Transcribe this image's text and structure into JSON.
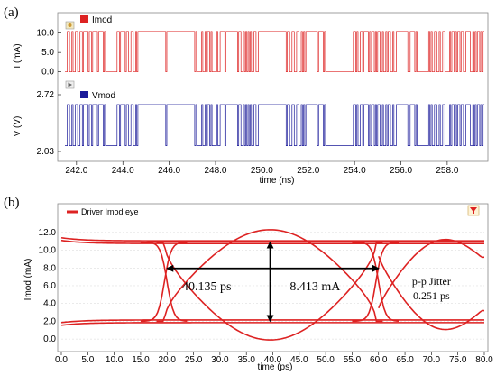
{
  "panels": {
    "a_label": "(a)",
    "b_label": "(b)"
  },
  "chart_data": [
    {
      "type": "line",
      "panel": "(a)",
      "xlabel": "time (ns)",
      "xlim": [
        241.5,
        259.6
      ],
      "x_ticks": [
        "242.0",
        "244.0",
        "246.0",
        "248.0",
        "250.0",
        "252.0",
        "254.0",
        "256.0",
        "258.0"
      ],
      "subplots": [
        {
          "series": [
            {
              "name": "Imod",
              "color": "#dd2222"
            }
          ],
          "ylabel": "I (mA)",
          "ylim": [
            -1,
            12
          ],
          "y_ticks": [
            "10.0",
            "5.0",
            "0.0"
          ],
          "levels": {
            "low": 0.0,
            "high": 10.4
          }
        },
        {
          "series": [
            {
              "name": "Vmod",
              "color": "#1a1a99"
            }
          ],
          "ylabel": "V (V)",
          "ylim": [
            2.03,
            2.72
          ],
          "y_ticks": [
            "2.72",
            "2.03"
          ],
          "levels": {
            "low": 2.1,
            "high": 2.6
          }
        }
      ],
      "bit_pattern_hint": "pseudo-random NRZ data, eye-diagram source"
    },
    {
      "type": "line",
      "panel": "(b)",
      "series": [
        {
          "name": "Driver Imod eye",
          "color": "#dd2222"
        }
      ],
      "xlabel": "time (ps)",
      "ylabel": "Imod (mA)",
      "xlim": [
        0,
        80
      ],
      "ylim": [
        -0.8,
        13.2
      ],
      "x_ticks": [
        "0.0",
        "5.0",
        "10.0",
        "15.0",
        "20.0",
        "25.0",
        "30.0",
        "35.0",
        "40.0",
        "45.0",
        "50.0",
        "55.0",
        "60.0",
        "65.0",
        "70.0",
        "75.0",
        "80.0"
      ],
      "y_ticks": [
        "0.0",
        "2.0",
        "4.0",
        "6.0",
        "8.0",
        "10.0",
        "12.0"
      ],
      "levels": {
        "low": 2.0,
        "high": 10.9
      },
      "crossings_ps": [
        19.5,
        59.5
      ],
      "annotations": {
        "eye_width": "40.135 ps",
        "eye_height": "8.413 mA",
        "jitter_title": "p-p Jitter",
        "jitter_value": "0.251 ps"
      }
    }
  ],
  "colors": {
    "imod": "#dd2222",
    "vmod": "#1a1a99",
    "axes": "#000000",
    "grid": "#cccccc"
  },
  "icons": {
    "panel_a_ctrl1": "color-swatch-icon",
    "panel_a_ctrl2": "play-triangle-icon",
    "panel_b_ctrl": "filter-funnel-icon"
  }
}
